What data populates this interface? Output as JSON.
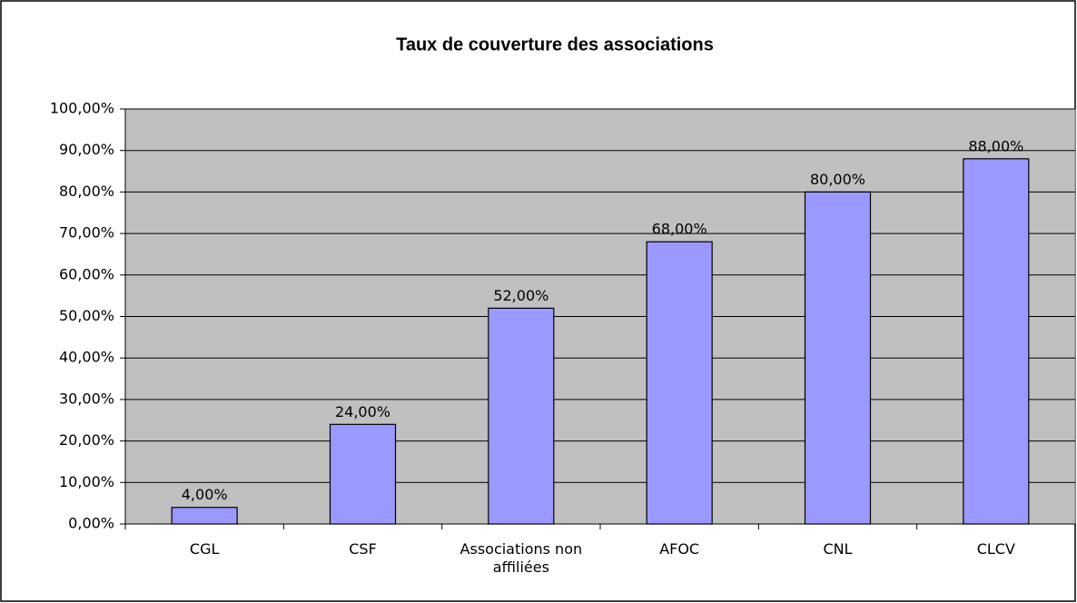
{
  "chart_data": {
    "type": "bar",
    "title": "Taux de couverture des associations",
    "categories": [
      "CGL",
      "CSF",
      "Associations non affiliées",
      "AFOC",
      "CNL",
      "CLCV"
    ],
    "values": [
      4,
      24,
      52,
      68,
      80,
      88
    ],
    "value_labels": [
      "4,00%",
      "24,00%",
      "52,00%",
      "68,00%",
      "80,00%",
      "88,00%"
    ],
    "color": "#9999ff",
    "ylim": [
      0,
      100
    ],
    "yticks": [
      {
        "value": 0,
        "label": "0,00%"
      },
      {
        "value": 10,
        "label": "10,00%"
      },
      {
        "value": 20,
        "label": "20,00%"
      },
      {
        "value": 30,
        "label": "30,00%"
      },
      {
        "value": 40,
        "label": "40,00%"
      },
      {
        "value": 50,
        "label": "50,00%"
      },
      {
        "value": 60,
        "label": "60,00%"
      },
      {
        "value": 70,
        "label": "70,00%"
      },
      {
        "value": 80,
        "label": "80,00%"
      },
      {
        "value": 90,
        "label": "90,00%"
      },
      {
        "value": 100,
        "label": "100,00%"
      }
    ],
    "grid": true
  }
}
